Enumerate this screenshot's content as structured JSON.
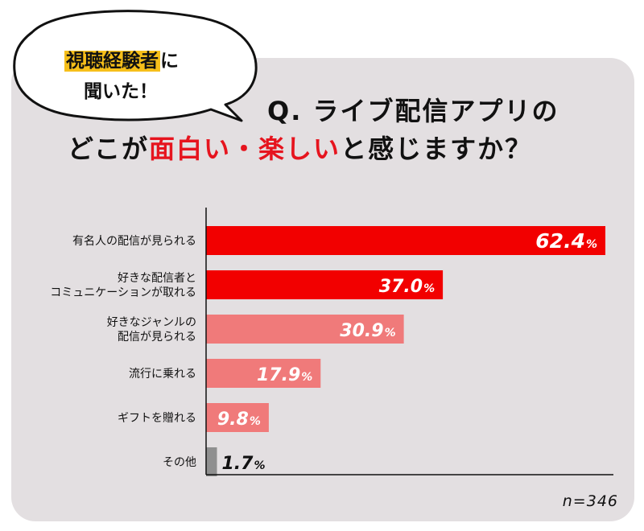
{
  "bubble": {
    "highlight": "視聴経験者",
    "line1_suffix": "に",
    "line2": "聞いた！"
  },
  "title": {
    "line1": "Q. ライブ配信アプリの",
    "line2_a": "どこが",
    "line2_highlight": "面白い・楽しい",
    "line2_b": "と感じますか？"
  },
  "n_label": "n=346",
  "chart_data": {
    "type": "bar",
    "orientation": "horizontal",
    "categories": [
      [
        "有名人の配信が見られる"
      ],
      [
        "好きな配信者と",
        "コミュニケーションが取れる"
      ],
      [
        "好きなジャンルの",
        "配信が見られる"
      ],
      [
        "流行に乗れる"
      ],
      [
        "ギフトを贈れる"
      ],
      [
        "その他"
      ]
    ],
    "values": [
      62.4,
      37.0,
      30.9,
      17.9,
      9.8,
      1.7
    ],
    "value_labels": [
      "62.4",
      "37.0",
      "30.9",
      "17.9",
      "9.8",
      "1.7"
    ],
    "unit": "%",
    "colors": [
      "#f20000",
      "#f20000",
      "#f07a7a",
      "#f07a7a",
      "#f07a7a",
      "#8f8f8f"
    ],
    "xlim": [
      0,
      100
    ]
  }
}
